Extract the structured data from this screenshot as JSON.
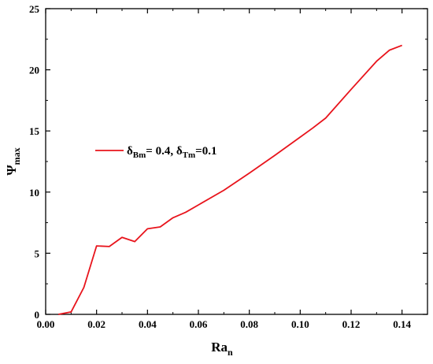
{
  "chart_data": {
    "type": "line",
    "xlabel": {
      "main": "Ra",
      "sub": "n"
    },
    "ylabel": {
      "main": "Ψ",
      "sub": "max"
    },
    "xlim": [
      0.0,
      0.15
    ],
    "ylim": [
      0,
      25
    ],
    "xticks": [
      "0.00",
      "0.02",
      "0.04",
      "0.06",
      "0.08",
      "0.10",
      "0.12",
      "0.14"
    ],
    "xtick_values": [
      0.0,
      0.02,
      0.04,
      0.06,
      0.08,
      0.1,
      0.12,
      0.14
    ],
    "yticks": [
      "0",
      "5",
      "10",
      "15",
      "20",
      "25"
    ],
    "ytick_values": [
      0,
      5,
      10,
      15,
      20,
      25
    ],
    "grid": false,
    "legend_placement": "center-left",
    "series": [
      {
        "legend": {
          "d1": "δ",
          "d1_sub": "Bm",
          "eq1": "= 0.4, ",
          "d2": "δ",
          "d2_sub": "Tm",
          "eq2": "=0.1"
        },
        "color": "#e8141c",
        "x": [
          0.005,
          0.01,
          0.015,
          0.02,
          0.025,
          0.03,
          0.035,
          0.04,
          0.045,
          0.05,
          0.055,
          0.06,
          0.07,
          0.08,
          0.09,
          0.1,
          0.105,
          0.11,
          0.12,
          0.13,
          0.135,
          0.14
        ],
        "y": [
          0.0,
          0.2,
          2.2,
          5.6,
          5.55,
          6.3,
          5.95,
          7.0,
          7.15,
          7.9,
          8.35,
          8.95,
          10.15,
          11.55,
          13.0,
          14.5,
          15.25,
          16.05,
          18.4,
          20.7,
          21.6,
          22.0
        ]
      }
    ]
  }
}
